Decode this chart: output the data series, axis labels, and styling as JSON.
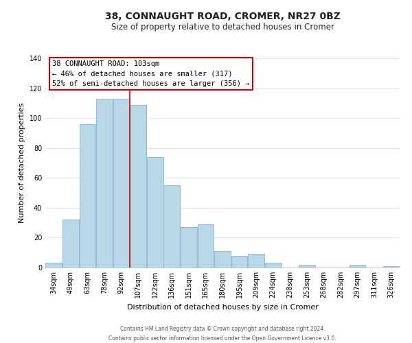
{
  "title": "38, CONNAUGHT ROAD, CROMER, NR27 0BZ",
  "subtitle": "Size of property relative to detached houses in Cromer",
  "xlabel": "Distribution of detached houses by size in Cromer",
  "ylabel": "Number of detached properties",
  "categories": [
    "34sqm",
    "49sqm",
    "63sqm",
    "78sqm",
    "92sqm",
    "107sqm",
    "122sqm",
    "136sqm",
    "151sqm",
    "165sqm",
    "180sqm",
    "195sqm",
    "209sqm",
    "224sqm",
    "238sqm",
    "253sqm",
    "268sqm",
    "282sqm",
    "297sqm",
    "311sqm",
    "326sqm"
  ],
  "values": [
    3,
    32,
    96,
    113,
    113,
    109,
    74,
    55,
    27,
    29,
    11,
    8,
    9,
    3,
    0,
    2,
    0,
    0,
    2,
    0,
    1
  ],
  "bar_color": "#b8d8e8",
  "bar_edge_color": "#90bcd4",
  "highlight_color": "#cc0000",
  "ylim": [
    0,
    140
  ],
  "yticks": [
    0,
    20,
    40,
    60,
    80,
    100,
    120,
    140
  ],
  "annotation_title": "38 CONNAUGHT ROAD: 103sqm",
  "annotation_line1": "← 46% of detached houses are smaller (317)",
  "annotation_line2": "52% of semi-detached houses are larger (356) →",
  "annotation_box_color": "#ffffff",
  "annotation_box_edge": "#cc0000",
  "footer_line1": "Contains HM Land Registry data © Crown copyright and database right 2024.",
  "footer_line2": "Contains public sector information licensed under the Open Government Licence v3.0.",
  "background_color": "#ffffff",
  "grid_color": "#d8e8f0",
  "red_line_x": 4.5,
  "title_fontsize": 10,
  "subtitle_fontsize": 8.5,
  "ylabel_fontsize": 8,
  "xlabel_fontsize": 8,
  "tick_fontsize": 7,
  "annotation_fontsize": 7.5,
  "footer_fontsize": 5.5
}
